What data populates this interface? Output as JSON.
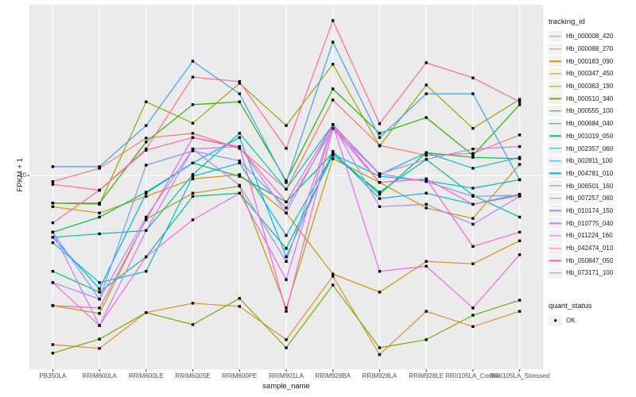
{
  "chart_data": {
    "type": "line",
    "x_title": "sample_name",
    "y_title": "FPKM + 1",
    "y_scale": "log10",
    "y_tick_labels": [
      "10"
    ],
    "y_tick_values": [
      10
    ],
    "grid": "on",
    "panel_bg": "#EBEBEB",
    "grid_color": "#FFFFFF",
    "point_shape": "filled-square",
    "point_color": "#000000",
    "categories": [
      "PB350LA",
      "RRIM600LA",
      "RRIM600LE",
      "RRIM600SE",
      "RRIM600PE",
      "RRIM901LA",
      "RRIM928BA",
      "RRIM928LA",
      "RRIM928LE",
      "RRII105LA_Control",
      "RRII105LA_Stressed"
    ],
    "legend": {
      "color_title": "tracking_id",
      "shape_title": "quant_status",
      "shape_entries": [
        {
          "label": "OK"
        }
      ]
    },
    "series": [
      {
        "name": "Hb_000008_420",
        "color": "#F8766D",
        "values": [
          9.3,
          10.9,
          15.6,
          16.5,
          13.8,
          8.5,
          24.5,
          14.3,
          12.7,
          13.0,
          16.2
        ]
      },
      {
        "name": "Hb_000088_270",
        "color": "#E98A2C",
        "values": [
          1.34,
          1.28,
          1.96,
          2.19,
          2.11,
          1.42,
          3.02,
          1.19,
          1.99,
          1.66,
          1.99
        ]
      },
      {
        "name": "Hb_000183_090",
        "color": "#D69100",
        "values": [
          6.9,
          6.4,
          7.8,
          9.6,
          10.1,
          6.4,
          3.1,
          2.5,
          3.6,
          3.5,
          4.6
        ]
      },
      {
        "name": "Hb_000347_450",
        "color": "#BC9D00",
        "values": [
          2.13,
          1.94,
          5.95,
          8.1,
          8.8,
          2.07,
          12.2,
          9.2,
          6.8,
          6.0,
          11.4
        ]
      },
      {
        "name": "Hb_000363_190",
        "color": "#9CA700",
        "values": [
          7.2,
          7.1,
          24.0,
          18.6,
          29.9,
          18.1,
          37.5,
          14.2,
          29.3,
          17.5,
          24.7
        ]
      },
      {
        "name": "Hb_000510_340",
        "color": "#6FB000",
        "values": [
          1.21,
          1.43,
          1.96,
          1.7,
          2.32,
          1.29,
          2.72,
          1.29,
          1.42,
          1.9,
          2.27
        ]
      },
      {
        "name": "Hb_000555_100",
        "color": "#21B700",
        "values": [
          7.2,
          7.2,
          14.9,
          23.2,
          24.0,
          9.4,
          28.0,
          16.5,
          19.9,
          12.7,
          23.2
        ]
      },
      {
        "name": "Hb_000684_040",
        "color": "#00BC51",
        "values": [
          5.1,
          6.1,
          8.2,
          11.6,
          9.9,
          7.3,
          13.1,
          8.0,
          13.1,
          12.4,
          12.2
        ]
      },
      {
        "name": "Hb_001019_050",
        "color": "#00C08D",
        "values": [
          3.2,
          2.5,
          3.8,
          7.8,
          8.1,
          4.2,
          12.7,
          8.2,
          12.1,
          7.9,
          6.1
        ]
      },
      {
        "name": "Hb_002357_060",
        "color": "#00C0B4",
        "values": [
          4.8,
          5.0,
          5.2,
          10.1,
          16.5,
          8.5,
          18.3,
          10.1,
          13.1,
          10.9,
          12.4
        ]
      },
      {
        "name": "Hb_002811_100",
        "color": "#00BBDA",
        "values": [
          4.5,
          2.8,
          3.2,
          9.9,
          11.6,
          4.9,
          12.9,
          9.9,
          9.4,
          8.6,
          9.5
        ]
      },
      {
        "name": "Hb_004781_010",
        "color": "#00B0F5",
        "values": [
          4.8,
          2.6,
          8.1,
          11.6,
          15.7,
          3.8,
          13.3,
          7.6,
          8.1,
          7.1,
          8.0
        ]
      },
      {
        "name": "Hb_006501_160",
        "color": "#3DA1FF",
        "values": [
          11.1,
          11.1,
          18.1,
          38.9,
          26.4,
          9.2,
          48.8,
          15.7,
          26.4,
          26.4,
          9.5
        ]
      },
      {
        "name": "Hb_007257_060",
        "color": "#7C96FF",
        "values": [
          5.1,
          2.3,
          11.3,
          13.4,
          11.9,
          6.8,
          17.5,
          10.2,
          9.3,
          7.8,
          7.9
        ]
      },
      {
        "name": "Hb_010174_150",
        "color": "#AC88FF",
        "values": [
          2.8,
          2.3,
          6.1,
          13.7,
          8.9,
          3.6,
          18.3,
          6.9,
          7.1,
          5.6,
          7.8
        ]
      },
      {
        "name": "Hb_010775_040",
        "color": "#D277FF",
        "values": [
          5.1,
          1.68,
          5.2,
          13.7,
          14.1,
          6.4,
          18.3,
          10.2,
          12.1,
          13.7,
          14.1
        ]
      },
      {
        "name": "Hb_011224_160",
        "color": "#EC69EF",
        "values": [
          2.8,
          1.68,
          3.8,
          5.9,
          8.1,
          2.9,
          18.3,
          3.2,
          3.4,
          2.07,
          3.9
        ]
      },
      {
        "name": "Hb_042474_010",
        "color": "#FB61D7",
        "values": [
          2.13,
          2.07,
          5.9,
          15.7,
          14.1,
          1.99,
          17.5,
          9.2,
          9.6,
          4.3,
          5.1
        ]
      },
      {
        "name": "Hb_050847_050",
        "color": "#FF62B6",
        "values": [
          5.7,
          8.4,
          13.5,
          15.7,
          13.9,
          7.3,
          18.3,
          9.2,
          9.6,
          7.1,
          7.9
        ]
      },
      {
        "name": "Hb_073171_100",
        "color": "#FF6B94",
        "values": [
          9.0,
          8.4,
          13.7,
          32.2,
          30.5,
          13.8,
          63.0,
          18.5,
          38.2,
          31.9,
          24.0
        ]
      }
    ]
  }
}
